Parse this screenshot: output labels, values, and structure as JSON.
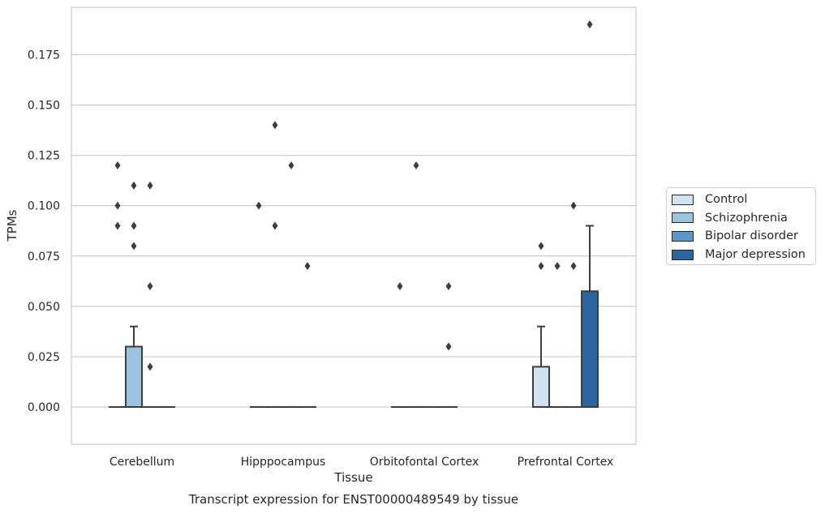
{
  "chart_data": {
    "type": "box",
    "title": "Transcript expression for ENST00000489549 by tissue",
    "xlabel": "Tissue",
    "ylabel": "TPMs",
    "ylim": [
      -0.0185,
      0.1985
    ],
    "yticks": [
      "0.000",
      "0.025",
      "0.050",
      "0.075",
      "0.100",
      "0.125",
      "0.150",
      "0.175"
    ],
    "grid": "horizontal",
    "legend_position": "right",
    "categories": [
      "Cerebellum",
      "Hipppocampus",
      "Orbitofontal Cortex",
      "Prefrontal Cortex"
    ],
    "series": [
      {
        "name": "Control",
        "color": "#d1e2f1",
        "boxes": [
          {
            "q1": 0,
            "median": 0,
            "q3": 0,
            "whisker_low": 0,
            "whisker_high": 0,
            "outliers": [
              0.12,
              0.1,
              0.09
            ]
          },
          {
            "q1": 0,
            "median": 0,
            "q3": 0,
            "whisker_low": 0,
            "whisker_high": 0,
            "outliers": [
              0.1
            ]
          },
          {
            "q1": 0,
            "median": 0,
            "q3": 0,
            "whisker_low": 0,
            "whisker_high": 0,
            "outliers": [
              0.06
            ]
          },
          {
            "q1": 0,
            "median": 0,
            "q3": 0.02,
            "whisker_low": 0,
            "whisker_high": 0.04,
            "outliers": [
              0.08,
              0.07
            ]
          }
        ]
      },
      {
        "name": "Schizophrenia",
        "color": "#9ac4de",
        "boxes": [
          {
            "q1": 0,
            "median": 0,
            "q3": 0.03,
            "whisker_low": 0,
            "whisker_high": 0.04,
            "outliers": [
              0.11,
              0.09,
              0.08
            ]
          },
          {
            "q1": 0,
            "median": 0,
            "q3": 0,
            "whisker_low": 0,
            "whisker_high": 0,
            "outliers": [
              0.14,
              0.09
            ]
          },
          {
            "q1": 0,
            "median": 0,
            "q3": 0,
            "whisker_low": 0,
            "whisker_high": 0,
            "outliers": [
              0.12
            ]
          },
          {
            "q1": 0,
            "median": 0,
            "q3": 0,
            "whisker_low": 0,
            "whisker_high": 0,
            "outliers": [
              0.07
            ]
          }
        ]
      },
      {
        "name": "Bipolar disorder",
        "color": "#5b9ac8",
        "boxes": [
          {
            "q1": 0,
            "median": 0,
            "q3": 0,
            "whisker_low": 0,
            "whisker_high": 0,
            "outliers": [
              0.11,
              0.06,
              0.02
            ]
          },
          {
            "q1": 0,
            "median": 0,
            "q3": 0,
            "whisker_low": 0,
            "whisker_high": 0,
            "outliers": [
              0.12
            ]
          },
          {
            "q1": 0,
            "median": 0,
            "q3": 0,
            "whisker_low": 0,
            "whisker_high": 0,
            "outliers": []
          },
          {
            "q1": 0,
            "median": 0,
            "q3": 0,
            "whisker_low": 0,
            "whisker_high": 0,
            "outliers": [
              0.1,
              0.07
            ]
          }
        ]
      },
      {
        "name": "Major depression",
        "color": "#2b65a1",
        "boxes": [
          {
            "q1": 0,
            "median": 0,
            "q3": 0,
            "whisker_low": 0,
            "whisker_high": 0,
            "outliers": []
          },
          {
            "q1": 0,
            "median": 0,
            "q3": 0,
            "whisker_low": 0,
            "whisker_high": 0,
            "outliers": [
              0.07
            ]
          },
          {
            "q1": 0,
            "median": 0,
            "q3": 0,
            "whisker_low": 0,
            "whisker_high": 0,
            "outliers": [
              0.06,
              0.03
            ]
          },
          {
            "q1": 0,
            "median": 0,
            "q3": 0.0575,
            "whisker_low": 0,
            "whisker_high": 0.09,
            "outliers": [
              0.19
            ]
          }
        ]
      }
    ]
  }
}
